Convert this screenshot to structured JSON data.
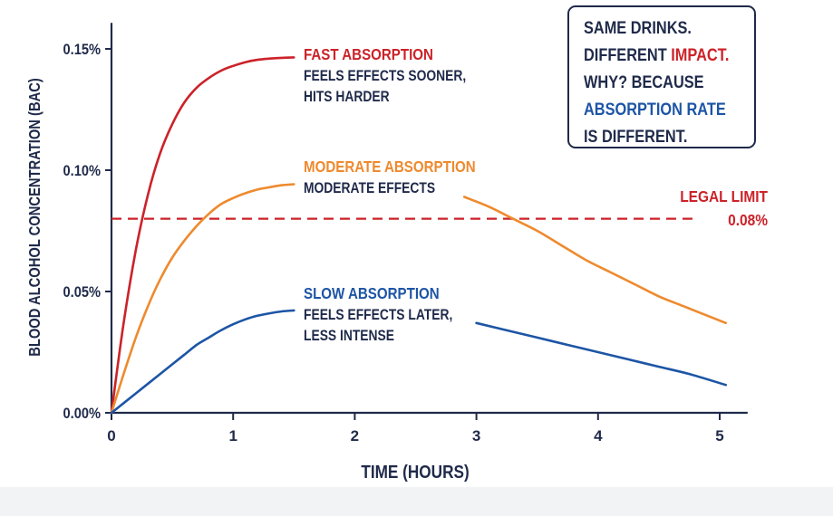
{
  "chart_data": {
    "type": "line",
    "xlabel": "TIME (HOURS)",
    "ylabel": "BLOOD ALCOHOL CONCENTRATION (BAC)",
    "xlim": [
      0,
      5.2
    ],
    "ylim": [
      0,
      0.16
    ],
    "x_ticks": [
      0,
      1,
      2,
      3,
      4,
      5
    ],
    "x_tick_labels": [
      "0",
      "1",
      "2",
      "3",
      "4",
      "5"
    ],
    "y_ticks": [
      0,
      0.05,
      0.1,
      0.15
    ],
    "y_tick_labels": [
      "0.00%",
      "0.05%",
      "0.10%",
      "0.15%"
    ],
    "grid": false,
    "series": [
      {
        "name": "FAST ABSORPTION",
        "note": "FEELS EFFECTS SOONER, HITS HARDER",
        "color": "#cc2229",
        "x": [
          0,
          0.1,
          0.2,
          0.3,
          0.4,
          0.5,
          0.6,
          0.7,
          0.8,
          0.9,
          1.0,
          1.1,
          1.2,
          1.3,
          1.4,
          1.5
        ],
        "y": [
          0,
          0.037,
          0.067,
          0.09,
          0.107,
          0.119,
          0.128,
          0.134,
          0.138,
          0.141,
          0.143,
          0.1445,
          0.1455,
          0.146,
          0.1463,
          0.1465
        ]
      },
      {
        "name": "MODERATE ABSORPTION",
        "note": "MODERATE EFFECTS",
        "color": "#ee8a2e",
        "x": [
          0,
          0.1,
          0.2,
          0.3,
          0.4,
          0.5,
          0.6,
          0.7,
          0.8,
          0.9,
          1.0,
          1.1,
          1.2,
          1.3,
          1.4,
          1.5,
          2.9,
          3.1,
          3.3,
          3.5,
          3.7,
          3.9,
          4.1,
          4.3,
          4.5,
          4.7,
          4.9,
          5.05
        ],
        "y": [
          0,
          0.016,
          0.031,
          0.044,
          0.055,
          0.064,
          0.071,
          0.077,
          0.082,
          0.086,
          0.0885,
          0.0905,
          0.092,
          0.093,
          0.0938,
          0.0942,
          0.089,
          0.085,
          0.08,
          0.075,
          0.069,
          0.063,
          0.058,
          0.053,
          0.048,
          0.044,
          0.04,
          0.037
        ]
      },
      {
        "name": "SLOW ABSORPTION",
        "note": "FEELS EFFECTS LATER, LESS INTENSE",
        "color": "#1d55a5",
        "x": [
          0,
          0.1,
          0.2,
          0.3,
          0.4,
          0.5,
          0.6,
          0.7,
          0.8,
          0.9,
          1.0,
          1.1,
          1.2,
          1.3,
          1.4,
          1.5,
          3.0,
          3.25,
          3.5,
          3.75,
          4.0,
          4.25,
          4.5,
          4.75,
          5.05
        ],
        "y": [
          0,
          0.004,
          0.008,
          0.012,
          0.016,
          0.02,
          0.024,
          0.028,
          0.031,
          0.034,
          0.0365,
          0.0385,
          0.04,
          0.041,
          0.0418,
          0.0422,
          0.037,
          0.034,
          0.031,
          0.028,
          0.025,
          0.022,
          0.019,
          0.016,
          0.0115
        ]
      }
    ],
    "reference_line": {
      "label": "LEGAL LIMIT",
      "value_label": "0.08%",
      "y": 0.08,
      "color": "#cc2229",
      "style": "dashed"
    },
    "callout": {
      "lines": [
        [
          {
            "text": "SAME DRINKS.",
            "color": "#1f2a4a"
          }
        ],
        [
          {
            "text": "DIFFERENT ",
            "color": "#1f2a4a"
          },
          {
            "text": "IMPACT.",
            "color": "#cc2229"
          }
        ],
        [
          {
            "text": "WHY? BECAUSE",
            "color": "#1f2a4a"
          }
        ],
        [
          {
            "text": "ABSORPTION RATE",
            "color": "#1d55a5"
          }
        ],
        [
          {
            "text": "IS DIFFERENT.",
            "color": "#1f2a4a"
          }
        ]
      ]
    }
  }
}
